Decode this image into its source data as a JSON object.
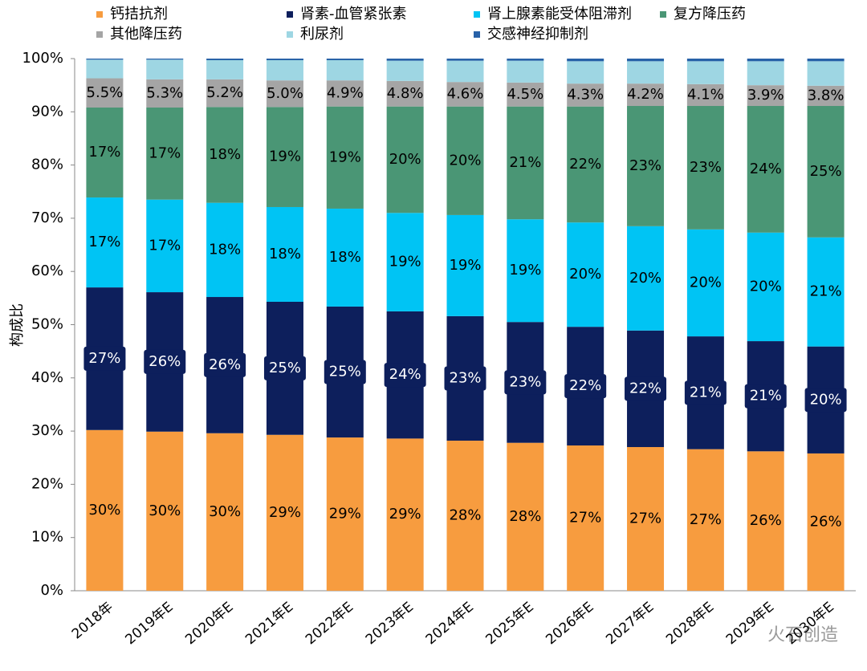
{
  "chart_data": {
    "type": "stacked_bar",
    "categories": [
      "2018年",
      "2019年E",
      "2020年E",
      "2021年E",
      "2022年E",
      "2023年E",
      "2024年E",
      "2025年E",
      "2026年E",
      "2027年E",
      "2028年E",
      "2029年E",
      "2030年E"
    ],
    "series": [
      {
        "name": "钙拮抗剂",
        "color": "#f79c3f",
        "values": [
          30.2,
          29.9,
          29.6,
          29.3,
          28.8,
          28.6,
          28.2,
          27.8,
          27.3,
          27.0,
          26.6,
          26.2,
          25.8
        ],
        "value_labels": [
          "30%",
          "30%",
          "30%",
          "29%",
          "29%",
          "29%",
          "28%",
          "28%",
          "27%",
          "27%",
          "27%",
          "26%",
          "26%"
        ]
      },
      {
        "name": "肾素-血管紧张素",
        "color": "#0d1f5c",
        "values": [
          26.8,
          26.2,
          25.6,
          25.0,
          24.6,
          23.9,
          23.4,
          22.7,
          22.3,
          21.9,
          21.2,
          20.7,
          20.1
        ],
        "value_labels": [
          "27%",
          "26%",
          "26%",
          "25%",
          "25%",
          "24%",
          "23%",
          "23%",
          "22%",
          "22%",
          "21%",
          "21%",
          "20%"
        ]
      },
      {
        "name": "肾上腺素能受体阻滞剂",
        "color": "#00c4f4",
        "values": [
          16.9,
          17.4,
          17.7,
          17.8,
          18.4,
          18.5,
          19.0,
          19.3,
          19.6,
          19.6,
          20.1,
          20.4,
          20.5
        ],
        "value_labels": [
          "17%",
          "17%",
          "18%",
          "18%",
          "18%",
          "19%",
          "19%",
          "19%",
          "20%",
          "20%",
          "20%",
          "20%",
          "21%"
        ]
      },
      {
        "name": "复方降压药",
        "color": "#4a9675",
        "values": [
          16.9,
          17.3,
          18.0,
          18.8,
          19.2,
          20.0,
          20.4,
          21.2,
          21.8,
          22.6,
          23.2,
          23.8,
          24.7
        ],
        "value_labels": [
          "17%",
          "17%",
          "18%",
          "19%",
          "19%",
          "20%",
          "20%",
          "21%",
          "22%",
          "23%",
          "23%",
          "24%",
          "25%"
        ]
      },
      {
        "name": "其他降压药",
        "color": "#a5a5a5",
        "values": [
          5.5,
          5.3,
          5.2,
          5.0,
          4.9,
          4.8,
          4.6,
          4.5,
          4.3,
          4.2,
          4.1,
          3.9,
          3.8
        ],
        "value_labels": [
          "5.5%",
          "5.3%",
          "5.2%",
          "5.0%",
          "4.9%",
          "4.8%",
          "4.6%",
          "4.5%",
          "4.3%",
          "4.2%",
          "4.1%",
          "3.9%",
          "3.8%"
        ]
      },
      {
        "name": "利尿剂",
        "color": "#9ed6e3",
        "values": [
          3.5,
          3.7,
          3.6,
          3.8,
          3.8,
          3.8,
          4.0,
          4.1,
          4.2,
          4.2,
          4.3,
          4.5,
          4.6
        ]
      },
      {
        "name": "交感神经抑制剂",
        "color": "#2862a8",
        "values": [
          0.2,
          0.2,
          0.3,
          0.3,
          0.3,
          0.4,
          0.4,
          0.4,
          0.5,
          0.5,
          0.5,
          0.5,
          0.5
        ]
      }
    ],
    "y_label": "构成比",
    "ylim": [
      0,
      100
    ],
    "yticks": [
      {
        "value": 0,
        "label": "0%"
      },
      {
        "value": 10,
        "label": "10%"
      },
      {
        "value": 20,
        "label": "20%"
      },
      {
        "value": 30,
        "label": "30%"
      },
      {
        "value": 40,
        "label": "40%"
      },
      {
        "value": 50,
        "label": "50%"
      },
      {
        "value": 60,
        "label": "60%"
      },
      {
        "value": 70,
        "label": "70%"
      },
      {
        "value": 80,
        "label": "80%"
      },
      {
        "value": 90,
        "label": "90%"
      },
      {
        "value": 100,
        "label": "100%"
      }
    ],
    "watermark": "火石创造"
  }
}
